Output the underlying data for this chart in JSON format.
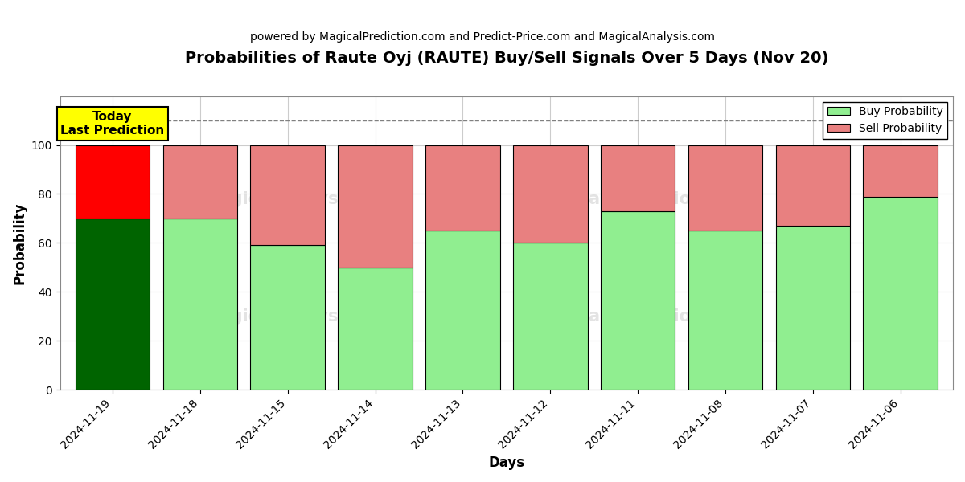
{
  "dates": [
    "2024-11-19",
    "2024-11-18",
    "2024-11-15",
    "2024-11-14",
    "2024-11-13",
    "2024-11-12",
    "2024-11-11",
    "2024-11-08",
    "2024-11-07",
    "2024-11-06"
  ],
  "buy_values": [
    70,
    70,
    59,
    50,
    65,
    60,
    73,
    65,
    67,
    79
  ],
  "sell_values": [
    30,
    30,
    41,
    50,
    35,
    40,
    27,
    35,
    33,
    21
  ],
  "today_buy_color": "#006400",
  "today_sell_color": "#FF0000",
  "buy_color": "#90EE90",
  "sell_color": "#E88080",
  "title": "Probabilities of Raute Oyj (RAUTE) Buy/Sell Signals Over 5 Days (Nov 20)",
  "subtitle": "powered by MagicalPrediction.com and Predict-Price.com and MagicalAnalysis.com",
  "xlabel": "Days",
  "ylabel": "Probability",
  "ylim": [
    0,
    120
  ],
  "dashed_line_y": 110,
  "legend_buy_label": "Buy Probability",
  "legend_sell_label": "Sell Probability",
  "today_label_line1": "Today",
  "today_label_line2": "Last Prediction",
  "background_color": "#ffffff",
  "grid_color": "#cccccc",
  "bar_edge_color": "#000000",
  "bar_width": 0.85
}
